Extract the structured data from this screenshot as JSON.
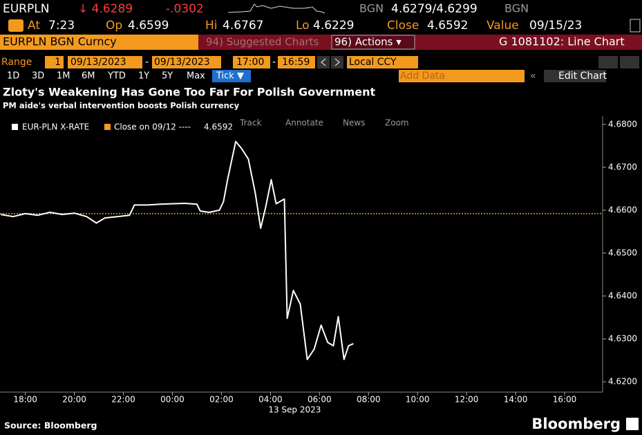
{
  "terminal": {
    "ticker": "EURPLN",
    "last": "↓ 4.6289",
    "change": "-.0302",
    "bid_ccy": "BGN",
    "bid_ask": "4.6279/4.6299",
    "ask_ccy": "BGN",
    "stats": [
      {
        "label": "At",
        "value": "7:23"
      },
      {
        "label": "Op",
        "value": "4.6599"
      },
      {
        "label": "Hi",
        "value": "4.6767"
      },
      {
        "label": "Lo",
        "value": "4.6229"
      },
      {
        "label": "Close",
        "value": "4.6592"
      },
      {
        "label": "Value",
        "value": "09/15/23"
      }
    ],
    "security": "EURPLN BGN Curncy",
    "suggested": "94) Suggested Charts",
    "actions": "96) Actions ▾",
    "function": "G 1081102: Line Chart",
    "range_label": "Range",
    "range_count": "1",
    "start_date": "09/13/2023",
    "end_date": "09/13/2023",
    "start_time": "17:00",
    "end_time": "16:59",
    "currency": "Local CCY",
    "periods": [
      "1D",
      "3D",
      "1M",
      "6M",
      "YTD",
      "1Y",
      "5Y",
      "Max"
    ],
    "period_active": "Tick ▼",
    "add_data": "Add Data",
    "edit_chart": "Edit Chart",
    "tools": [
      "Track",
      "Annotate",
      "News",
      "Zoom"
    ],
    "source": "Source: Bloomberg",
    "brand": "Bloomberg"
  },
  "chart_data": {
    "type": "line",
    "title": "Zloty's Weakening Has Gone Too Far For Polish Government",
    "subtitle": "PM aide's verbal intervention boosts Polish currency",
    "x": [
      "2023-09-12 17:00",
      "2023-09-12 17:30",
      "2023-09-12 18:00",
      "2023-09-12 18:30",
      "2023-09-12 19:00",
      "2023-09-12 19:30",
      "2023-09-12 20:00",
      "2023-09-12 20:30",
      "2023-09-12 20:54",
      "2023-09-12 21:15",
      "2023-09-12 21:45",
      "2023-09-12 22:15",
      "2023-09-12 22:27",
      "2023-09-12 23:00",
      "2023-09-12 23:30",
      "2023-09-13 00:00",
      "2023-09-13 00:30",
      "2023-09-13 01:00",
      "2023-09-13 01:08",
      "2023-09-13 01:30",
      "2023-09-13 01:55",
      "2023-09-13 02:05",
      "2023-09-13 02:15",
      "2023-09-13 02:35",
      "2023-09-13 02:49",
      "2023-09-13 03:06",
      "2023-09-13 03:23",
      "2023-09-13 03:36",
      "2023-09-13 03:48",
      "2023-09-13 04:02",
      "2023-09-13 04:14",
      "2023-09-13 04:34",
      "2023-09-13 04:41",
      "2023-09-13 04:56",
      "2023-09-13 05:13",
      "2023-09-13 05:30",
      "2023-09-13 05:47",
      "2023-09-13 06:04",
      "2023-09-13 06:20",
      "2023-09-13 06:34",
      "2023-09-13 06:46",
      "2023-09-13 07:00",
      "2023-09-13 07:11",
      "2023-09-13 07:23"
    ],
    "series": [
      {
        "name": "EUR-PLN X-RATE",
        "color": "#ffffff",
        "values": [
          4.659,
          4.6585,
          4.6592,
          4.6588,
          4.6595,
          4.659,
          4.6593,
          4.6585,
          4.657,
          4.6582,
          4.6585,
          4.6588,
          4.6612,
          4.6612,
          4.6614,
          4.6615,
          4.6616,
          4.6614,
          4.6598,
          4.6595,
          4.66,
          4.662,
          4.6671,
          4.676,
          4.6744,
          4.6719,
          4.6639,
          4.6558,
          4.6606,
          4.6671,
          4.6615,
          4.6626,
          4.6348,
          4.6413,
          4.6381,
          4.6252,
          4.6276,
          4.6332,
          4.6292,
          4.6284,
          4.6352,
          4.6252,
          4.6284,
          4.6289
        ]
      }
    ],
    "reference_line": {
      "label": "Close on 09/12 ----",
      "value": 4.6592,
      "color": "#f39a1e"
    },
    "xlim": [
      "2023-09-12 16:58",
      "2023-09-13 17:33"
    ],
    "xticks": [
      {
        "value": "2023-09-12 18:00",
        "label": "18:00"
      },
      {
        "value": "2023-09-12 20:00",
        "label": "20:00"
      },
      {
        "value": "2023-09-12 22:00",
        "label": "22:00"
      },
      {
        "value": "2023-09-13 00:00",
        "label": "00:00"
      },
      {
        "value": "2023-09-13 02:00",
        "label": "02:00"
      },
      {
        "value": "2023-09-13 04:00",
        "label": "04:00"
      },
      {
        "value": "2023-09-13 06:00",
        "label": "06:00"
      },
      {
        "value": "2023-09-13 08:00",
        "label": "08:00"
      },
      {
        "value": "2023-09-13 10:00",
        "label": "10:00"
      },
      {
        "value": "2023-09-13 12:00",
        "label": "12:00"
      },
      {
        "value": "2023-09-13 14:00",
        "label": "14:00"
      },
      {
        "value": "2023-09-13 16:00",
        "label": "16:00"
      }
    ],
    "x_date_label": "13 Sep 2023",
    "ylim": [
      4.6176,
      4.6819
    ],
    "yticks": [
      {
        "value": 4.62,
        "label": "4.6200"
      },
      {
        "value": 4.63,
        "label": "4.6300"
      },
      {
        "value": 4.64,
        "label": "4.6400"
      },
      {
        "value": 4.65,
        "label": "4.6500"
      },
      {
        "value": 4.66,
        "label": "4.6600"
      },
      {
        "value": 4.67,
        "label": "4.6700"
      },
      {
        "value": 4.68,
        "label": "4.6800"
      }
    ],
    "grid": false
  }
}
